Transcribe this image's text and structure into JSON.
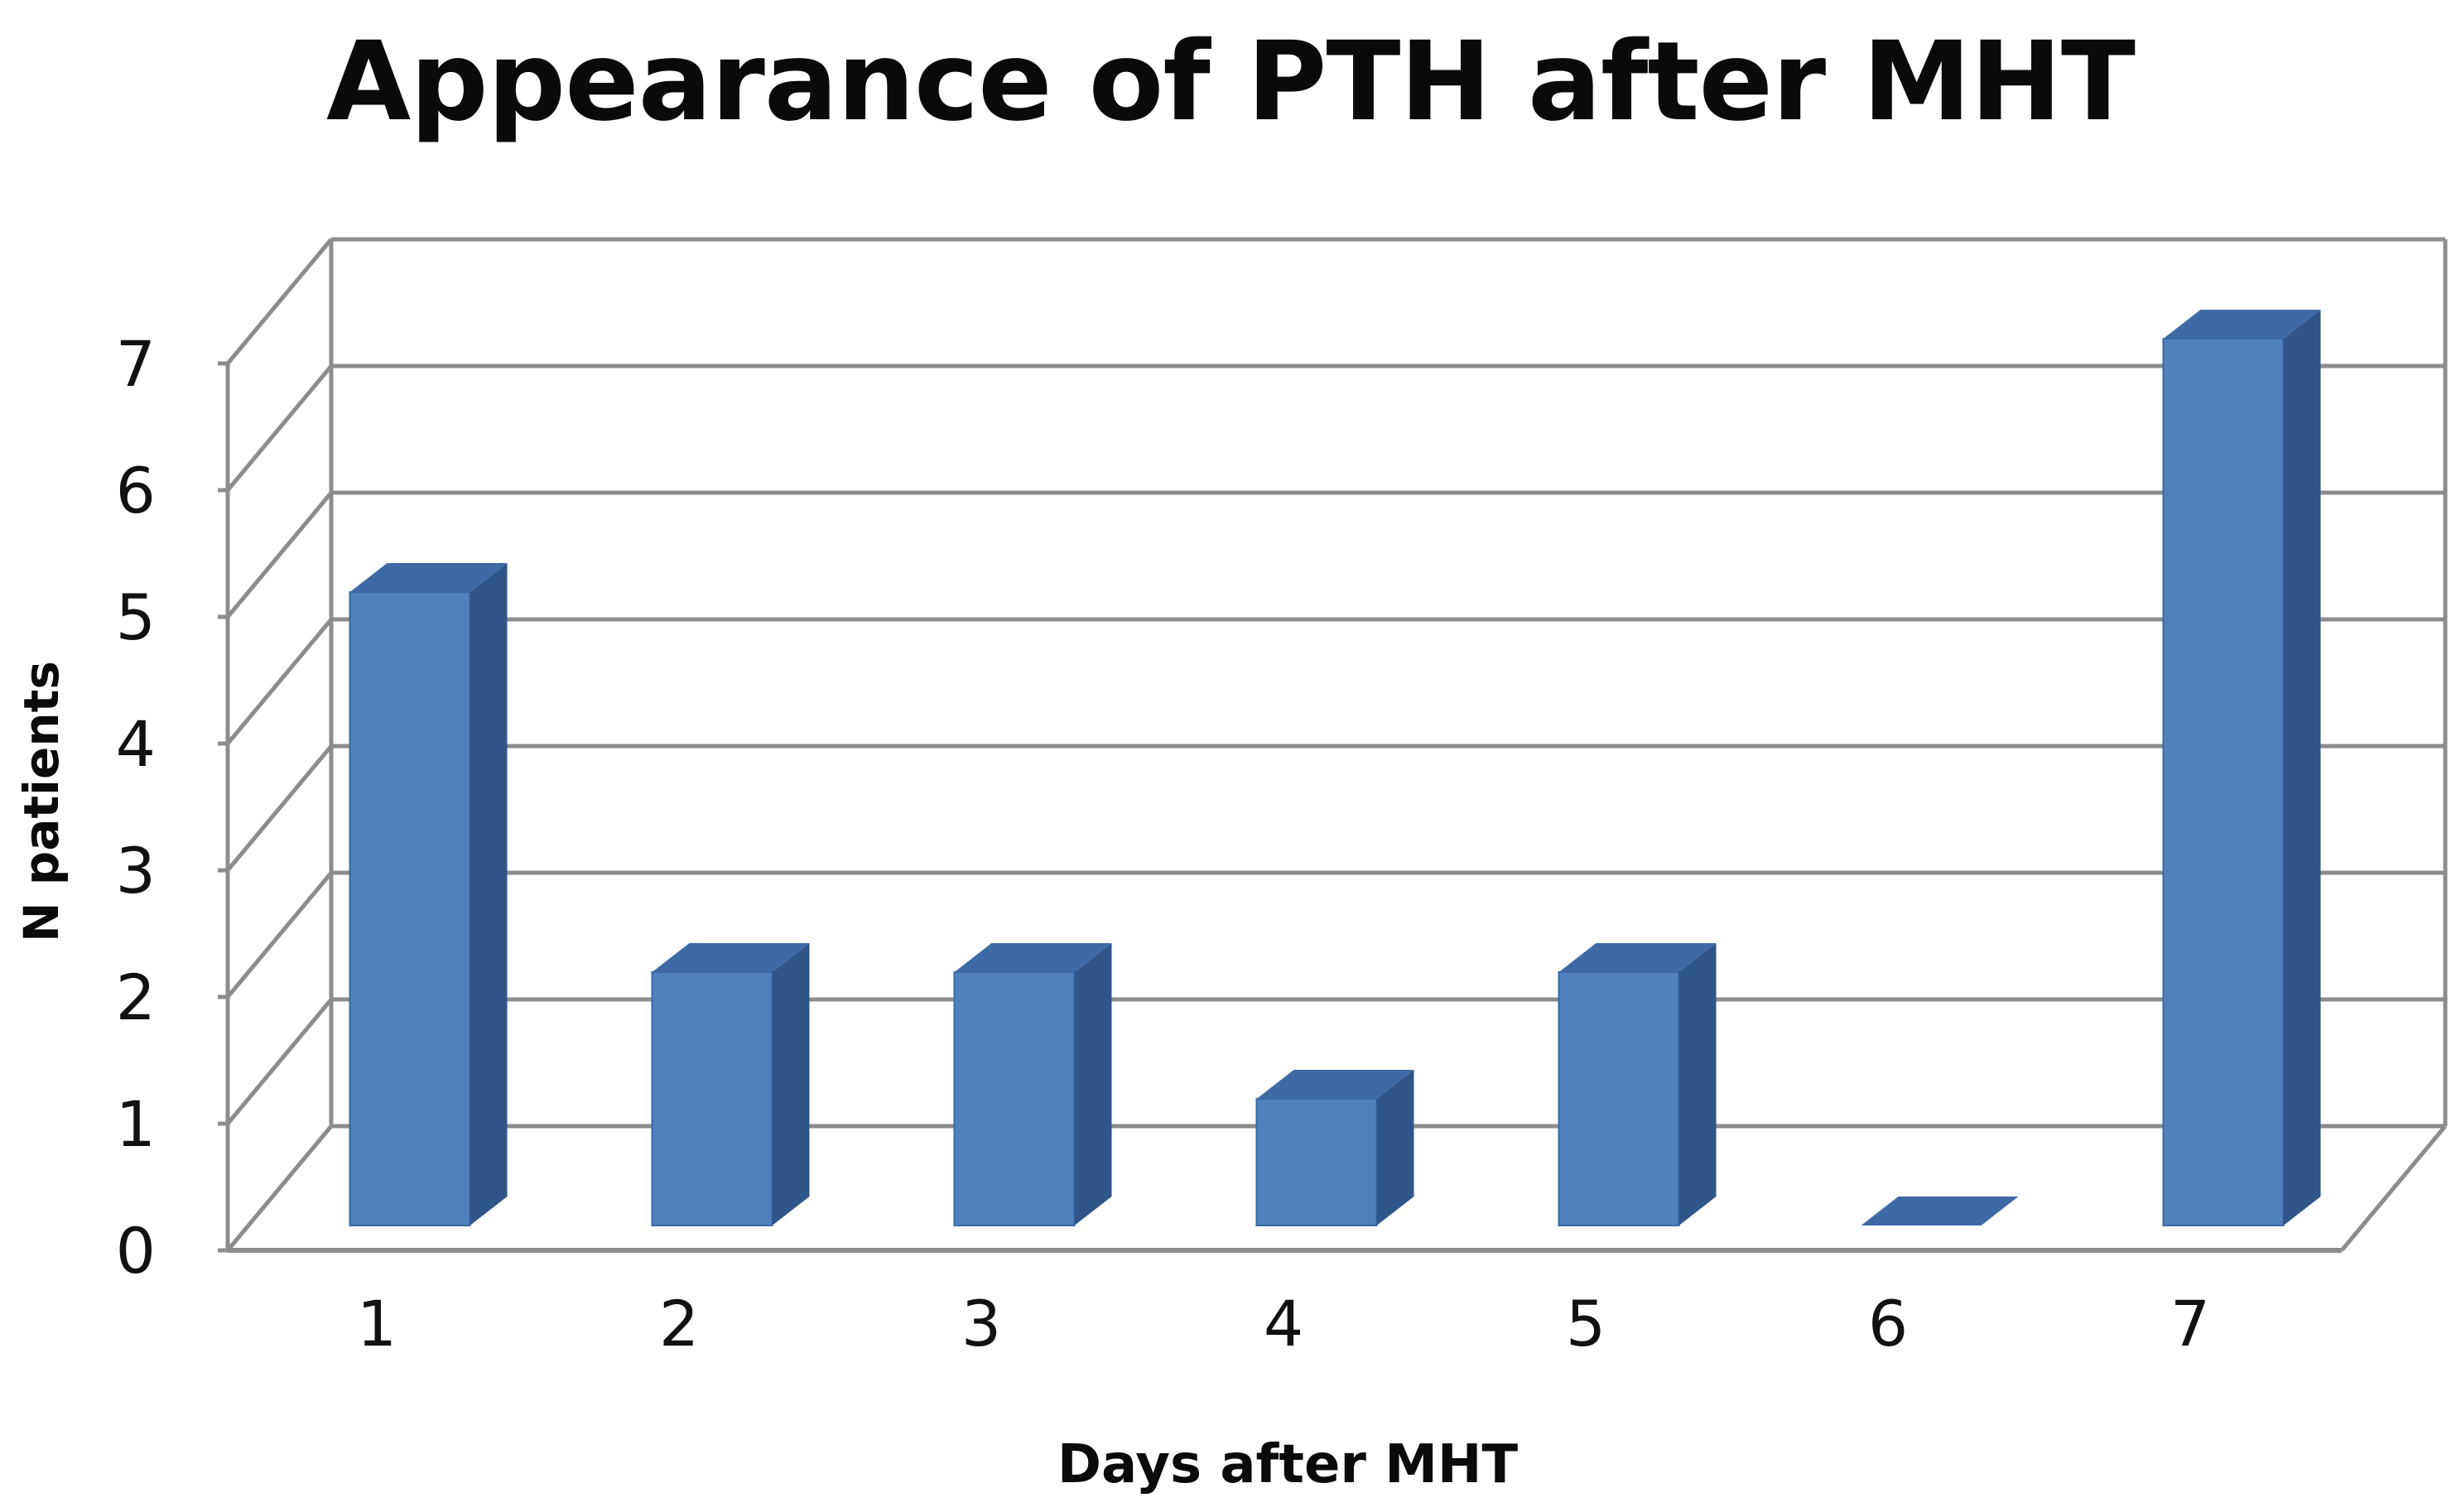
{
  "chart_data": {
    "type": "bar",
    "style": "3d-column",
    "title": "Appearance of PTH after MHT",
    "xlabel": "Days after MHT",
    "ylabel": "N patients",
    "categories": [
      "1",
      "2",
      "3",
      "4",
      "5",
      "6",
      "7"
    ],
    "values": [
      5,
      2,
      2,
      1,
      2,
      0,
      7
    ],
    "ylim": [
      0,
      7
    ],
    "yticks": [
      "0",
      "1",
      "2",
      "3",
      "4",
      "5",
      "6",
      "7"
    ],
    "grid": true,
    "legend": "none",
    "colors": {
      "bar_front": "#4f81bd",
      "bar_side": "#2f5589",
      "bar_top": "#3d6aa5",
      "gridline": "#8c8c8c"
    }
  }
}
